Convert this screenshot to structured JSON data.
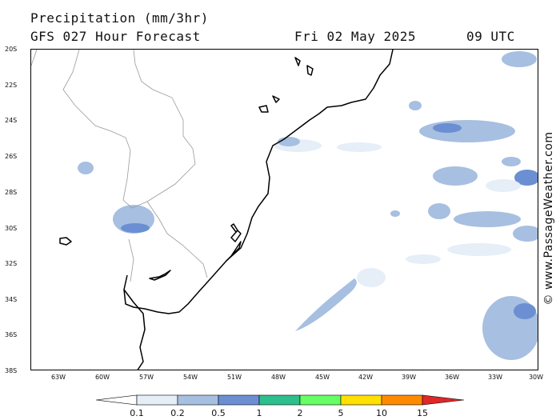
{
  "header": {
    "title": "Precipitation (mm/3hr)",
    "subtitle": "GFS 027 Hour Forecast",
    "date": "Fri 02 May 2025",
    "time": "09 UTC"
  },
  "map": {
    "lat_labels": [
      "20S",
      "22S",
      "24S",
      "26S",
      "28S",
      "30S",
      "32S",
      "34S",
      "36S",
      "38S"
    ],
    "lon_labels": [
      "63W",
      "60W",
      "57W",
      "54W",
      "51W",
      "48W",
      "45W",
      "42W",
      "39W",
      "36W",
      "33W",
      "30W"
    ],
    "colors": {
      "land_border": "#999999",
      "coast": "#000000"
    }
  },
  "watermark": "© www.PassageWeather.com",
  "legend": {
    "labels": [
      "0.1",
      "0.2",
      "0.5",
      "1",
      "2",
      "5",
      "10",
      "15"
    ],
    "colors": [
      "#ffffff",
      "#e6eef8",
      "#a7bfe0",
      "#6b8fd2",
      "#2ebf8e",
      "#66ff66",
      "#ffe000",
      "#ff8a00",
      "#e02828"
    ]
  }
}
